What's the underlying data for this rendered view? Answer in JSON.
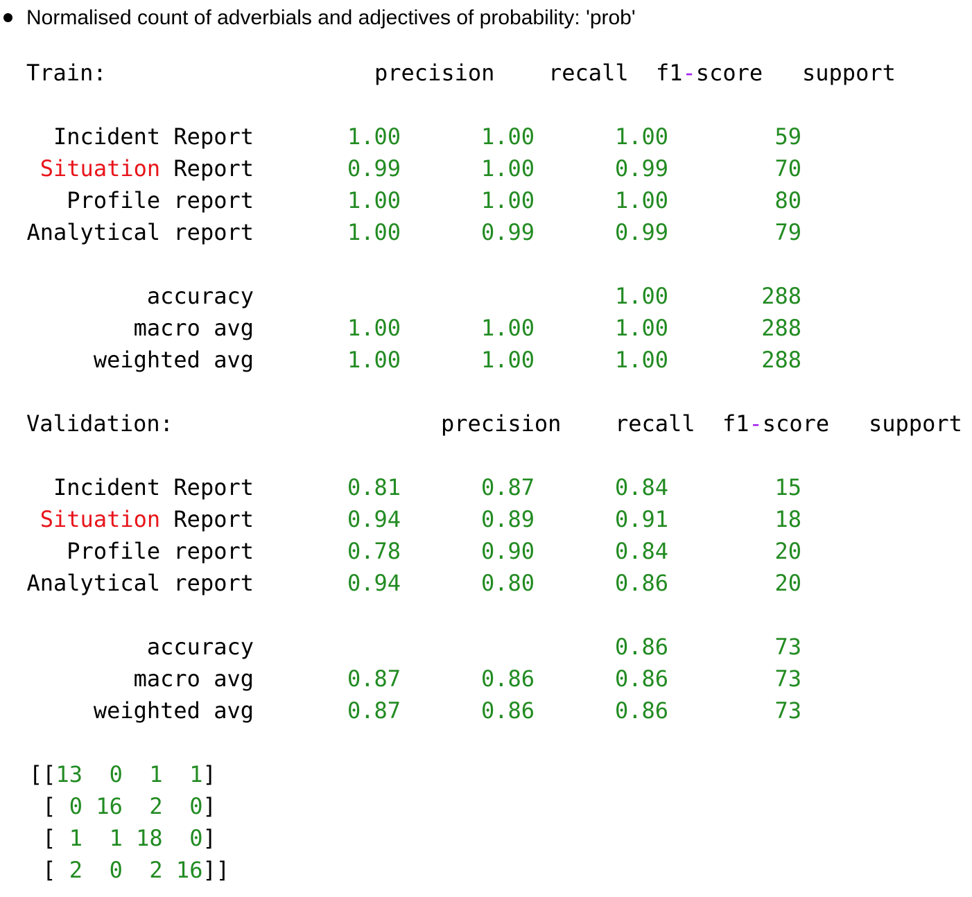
{
  "bullet": {
    "text": "Normalised count of adverbials and adjectives of probability: 'prob'"
  },
  "train": {
    "label": "Train:",
    "headers": {
      "precision": "precision",
      "recall": "recall",
      "f1_prefix": "f1",
      "f1_dash": "-",
      "f1_suffix": "score",
      "support": "support"
    },
    "rows": [
      {
        "label_pre": "",
        "label_hl": "",
        "label_post": "Incident Report",
        "precision": "1.00",
        "recall": "1.00",
        "f1": "1.00",
        "support": "59"
      },
      {
        "label_pre": "",
        "label_hl": "Situation",
        "label_post": " Report",
        "precision": "0.99",
        "recall": "1.00",
        "f1": "0.99",
        "support": "70"
      },
      {
        "label_pre": "",
        "label_hl": "",
        "label_post": "Profile report",
        "precision": "1.00",
        "recall": "1.00",
        "f1": "1.00",
        "support": "80"
      },
      {
        "label_pre": "",
        "label_hl": "",
        "label_post": "Analytical report",
        "precision": "1.00",
        "recall": "0.99",
        "f1": "0.99",
        "support": "79"
      }
    ],
    "summary": [
      {
        "label": "accuracy",
        "precision": "",
        "recall": "",
        "f1": "1.00",
        "support": "288"
      },
      {
        "label": "macro avg",
        "precision": "1.00",
        "recall": "1.00",
        "f1": "1.00",
        "support": "288"
      },
      {
        "label": "weighted avg",
        "precision": "1.00",
        "recall": "1.00",
        "f1": "1.00",
        "support": "288"
      }
    ]
  },
  "validation": {
    "label": "Validation:",
    "headers": {
      "precision": "precision",
      "recall": "recall",
      "f1_prefix": "f1",
      "f1_dash": "-",
      "f1_suffix": "score",
      "support": "support"
    },
    "rows": [
      {
        "label_hl": "",
        "label_post": "Incident Report",
        "precision": "0.81",
        "recall": "0.87",
        "f1": "0.84",
        "support": "15"
      },
      {
        "label_hl": "Situation",
        "label_post": " Report",
        "precision": "0.94",
        "recall": "0.89",
        "f1": "0.91",
        "support": "18"
      },
      {
        "label_hl": "",
        "label_post": "Profile report",
        "precision": "0.78",
        "recall": "0.90",
        "f1": "0.84",
        "support": "20"
      },
      {
        "label_hl": "",
        "label_post": "Analytical report",
        "precision": "0.94",
        "recall": "0.80",
        "f1": "0.86",
        "support": "20"
      }
    ],
    "summary": [
      {
        "label": "accuracy",
        "precision": "",
        "recall": "",
        "f1": "0.86",
        "support": "73"
      },
      {
        "label": "macro avg",
        "precision": "0.87",
        "recall": "0.86",
        "f1": "0.86",
        "support": "73"
      },
      {
        "label": "weighted avg",
        "precision": "0.87",
        "recall": "0.86",
        "f1": "0.86",
        "support": "73"
      }
    ]
  },
  "confusion_matrix": {
    "rows": [
      [
        "13",
        "0",
        "1",
        "1"
      ],
      [
        "0",
        "16",
        "2",
        "0"
      ],
      [
        "1",
        "1",
        "18",
        "0"
      ],
      [
        "2",
        "0",
        "2",
        "16"
      ]
    ]
  },
  "colors": {
    "number": "#228b22",
    "highlight_word": "#e8151b",
    "operator": "#a020f0",
    "text": "#000000"
  }
}
